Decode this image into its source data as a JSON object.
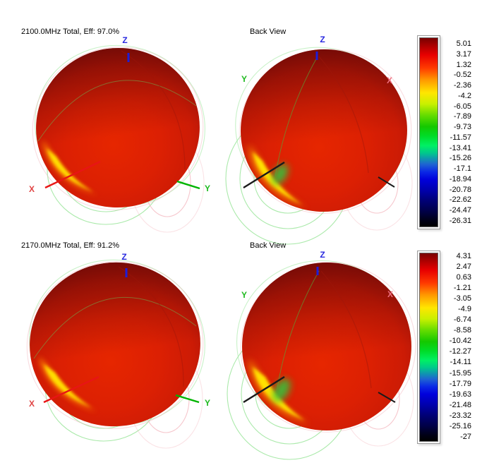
{
  "figure": {
    "rows": [
      {
        "title": "2100.0MHz Total, Eff: 97.0%",
        "back_view_label": "Back View",
        "axis_labels": {
          "x": "X",
          "y": "Y",
          "z": "Z"
        },
        "colorbar": {
          "ticks": [
            "5.01",
            "3.17",
            "1.32",
            "-0.52",
            "-2.36",
            "-4.2",
            "-6.05",
            "-7.89",
            "-9.73",
            "-11.57",
            "-13.41",
            "-15.26",
            "-17.1",
            "-18.94",
            "-20.78",
            "-22.62",
            "-24.47",
            "-26.31"
          ]
        }
      },
      {
        "title": "2170.0MHz Total, Eff: 91.2%",
        "back_view_label": "Back View",
        "axis_labels": {
          "x": "X",
          "y": "Y",
          "z": "Z"
        },
        "colorbar": {
          "ticks": [
            "4.31",
            "2.47",
            "0.63",
            "-1.21",
            "-3.05",
            "-4.9",
            "-6.74",
            "-8.58",
            "-10.42",
            "-12.27",
            "-14.11",
            "-15.95",
            "-17.79",
            "-19.63",
            "-21.48",
            "-23.32",
            "-25.16",
            "-27"
          ]
        }
      }
    ],
    "colors": {
      "background": "#ffffff",
      "axis_x": "#e81515",
      "axis_x_back": "#ee7080",
      "axis_y": "#00b400",
      "axis_z": "#2020d8",
      "grid_green": "#9ce69c",
      "grid_pink": "#f4b8c0",
      "pattern_max_red": "#e62600",
      "pattern_edge_red": "#8f120b"
    }
  },
  "chart_data": [
    {
      "type": "3d-surface",
      "title": "2100.0MHz Total, Eff: 97.0%",
      "frequency_label": "2100.0MHz",
      "quantity": "Total",
      "efficiency": "97.0%",
      "back_view_label": "Back View",
      "colorbar_ticks": [
        5.01,
        3.17,
        1.32,
        -0.52,
        -2.36,
        -4.2,
        -6.05,
        -7.89,
        -9.73,
        -11.57,
        -13.41,
        -15.26,
        -17.1,
        -18.94,
        -20.78,
        -22.62,
        -24.47,
        -26.31
      ],
      "colorbar_range": [
        -26.31,
        5.01
      ],
      "legend_position": "right",
      "notes": "3D far-field radiation pattern, front and back views; surface mostly at maximum (red) with a yellow/green minimum crescent on lower-left"
    },
    {
      "type": "3d-surface",
      "title": "2170.0MHz Total, Eff: 91.2%",
      "frequency_label": "2170.0MHz",
      "quantity": "Total",
      "efficiency": "91.2%",
      "back_view_label": "Back View",
      "colorbar_ticks": [
        4.31,
        2.47,
        0.63,
        -1.21,
        -3.05,
        -4.9,
        -6.74,
        -8.58,
        -10.42,
        -12.27,
        -14.11,
        -15.95,
        -17.79,
        -19.63,
        -21.48,
        -23.32,
        -25.16,
        -27
      ],
      "colorbar_range": [
        -27,
        4.31
      ],
      "legend_position": "right",
      "notes": "3D far-field radiation pattern, front and back views; surface mostly at maximum (red) with a yellow/green minimum crescent on lower-left"
    }
  ]
}
